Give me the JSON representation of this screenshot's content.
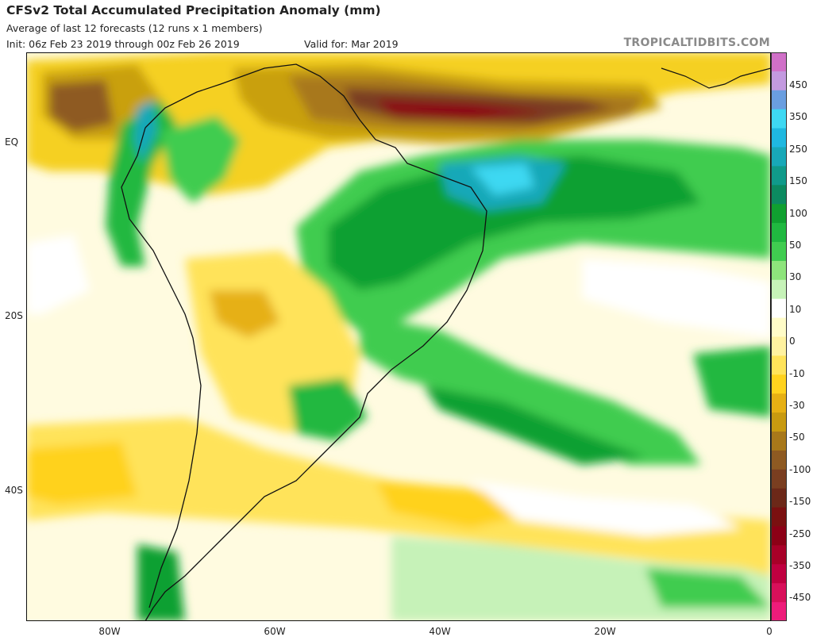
{
  "header": {
    "title": "CFSv2 Total Accumulated Precipitation Anomaly (mm)",
    "subtitle": "Average of last 12 forecasts (12 runs x 1 members)",
    "init": "Init: 06z Feb 23 2019 through 00z Feb 26 2019",
    "valid": "Valid for: Mar 2019",
    "brand": "TROPICALTIDBITS.COM"
  },
  "map": {
    "lat_labels": [
      "EQ",
      "20S",
      "40S"
    ],
    "lon_labels": [
      "80W",
      "60W",
      "40W",
      "20W",
      "0"
    ]
  },
  "colorbar": {
    "labels": [
      "450",
      "350",
      "250",
      "150",
      "100",
      "50",
      "30",
      "10",
      "0",
      "-10",
      "-30",
      "-50",
      "-100",
      "-150",
      "-250",
      "-350",
      "-450"
    ],
    "colors": [
      "#d070c8",
      "#c39ae0",
      "#6a9ee0",
      "#3ed8f2",
      "#1fb8e0",
      "#18a8b8",
      "#109a8a",
      "#0c8a60",
      "#10a030",
      "#20b840",
      "#40cc50",
      "#8ee47c",
      "#c6f2b8",
      "#ffffff",
      "#fffcc8",
      "#fff2a0",
      "#ffe35a",
      "#ffd21e",
      "#e6b014",
      "#c89a10",
      "#a8781a",
      "#8e5a22",
      "#7a3e20",
      "#6c2818",
      "#7a1010",
      "#8c0016",
      "#a80028",
      "#c00040",
      "#d8105a",
      "#ee1c7a"
    ]
  }
}
